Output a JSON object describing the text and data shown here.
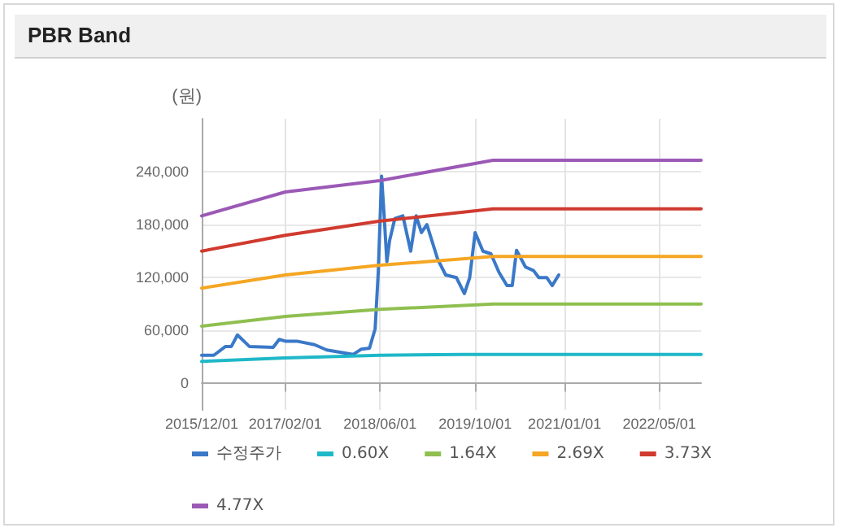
{
  "chart_data": {
    "type": "line",
    "title": "PBR Band",
    "ylabel": "(원)",
    "xlim": [
      "2015-12-01",
      "2022-12-01"
    ],
    "xticks": [
      {
        "value": "2015-12-01",
        "label": "2015/12/01"
      },
      {
        "value": "2017-02-01",
        "label": "2017/02/01"
      },
      {
        "value": "2018-06-01",
        "label": "2018/06/01"
      },
      {
        "value": "2019-10-01",
        "label": "2019/10/01"
      },
      {
        "value": "2021-01-01",
        "label": "2021/01/01"
      },
      {
        "value": "2022-05-01",
        "label": "2022/05/01"
      }
    ],
    "ylim": [
      -30000,
      300000
    ],
    "yticks": [
      0,
      {
        "value": 60000,
        "label": "60,000"
      },
      {
        "value": 120000,
        "label": "120,000"
      },
      {
        "value": 180000,
        "label": "180,000"
      },
      {
        "value": 240000,
        "label": "240,000"
      }
    ],
    "grid": true,
    "legend": "bottom",
    "marker": "none",
    "line_style": "solid",
    "series": [
      {
        "name": "수정주가",
        "color": "#3a78c8",
        "x": [
          "2015-12-01",
          "2016-02-01",
          "2016-04-01",
          "2016-05-01",
          "2016-06-01",
          "2016-08-01",
          "2016-12-01",
          "2017-01-01",
          "2017-02-01",
          "2017-04-01",
          "2017-07-01",
          "2017-09-01",
          "2018-01-15",
          "2018-02-26",
          "2018-04-08",
          "2018-05-07",
          "2018-05-23",
          "2018-06-09",
          "2018-06-23",
          "2018-07-06",
          "2018-07-20",
          "2018-08-16",
          "2018-09-26",
          "2018-11-05",
          "2018-12-03",
          "2018-12-30",
          "2019-01-27",
          "2019-03-23",
          "2019-05-03",
          "2019-06-27",
          "2019-08-07",
          "2019-09-03",
          "2019-10-01",
          "2019-11-10",
          "2019-12-21",
          "2020-01-31",
          "2020-03-12",
          "2020-04-08",
          "2020-04-30",
          "2020-06-15",
          "2020-07-26",
          "2020-08-22",
          "2020-10-02",
          "2020-10-30",
          "2020-12-02"
        ],
        "values": [
          32000,
          32000,
          42000,
          42000,
          55000,
          42000,
          41000,
          50000,
          48000,
          48000,
          44000,
          38000,
          33000,
          39000,
          40000,
          62000,
          126000,
          235000,
          187000,
          138000,
          162000,
          187000,
          190000,
          150000,
          190000,
          171000,
          180000,
          141000,
          123000,
          120000,
          102000,
          120000,
          171000,
          150000,
          147000,
          126000,
          111000,
          111000,
          151000,
          132000,
          128000,
          120000,
          120000,
          111000,
          123000
        ]
      },
      {
        "name": "0.60X",
        "color": "#1fb8c8",
        "x": [
          "2015-12-01",
          "2017-02-01",
          "2018-06-01",
          "2019-08-01",
          "2022-12-01"
        ],
        "values": [
          25000,
          29000,
          32000,
          33000,
          33000
        ]
      },
      {
        "name": "1.64X",
        "color": "#8fbf50",
        "x": [
          "2015-12-01",
          "2017-02-01",
          "2018-06-01",
          "2020-01-01",
          "2022-12-01"
        ],
        "values": [
          65000,
          76000,
          84000,
          90000,
          90000
        ]
      },
      {
        "name": "2.69X",
        "color": "#f5a623",
        "x": [
          "2015-12-01",
          "2017-02-01",
          "2018-06-01",
          "2020-01-01",
          "2022-12-01"
        ],
        "values": [
          108000,
          123000,
          134000,
          144000,
          144000
        ]
      },
      {
        "name": "3.73X",
        "color": "#d03a2f",
        "x": [
          "2015-12-01",
          "2017-02-01",
          "2018-06-01",
          "2020-01-01",
          "2022-12-01"
        ],
        "values": [
          150000,
          168000,
          184000,
          198000,
          198000
        ]
      },
      {
        "name": "4.77X",
        "color": "#9b59b6",
        "x": [
          "2015-12-01",
          "2017-02-01",
          "2018-06-01",
          "2020-01-01",
          "2022-12-01"
        ],
        "values": [
          190000,
          217000,
          230000,
          253000,
          253000
        ]
      }
    ]
  }
}
